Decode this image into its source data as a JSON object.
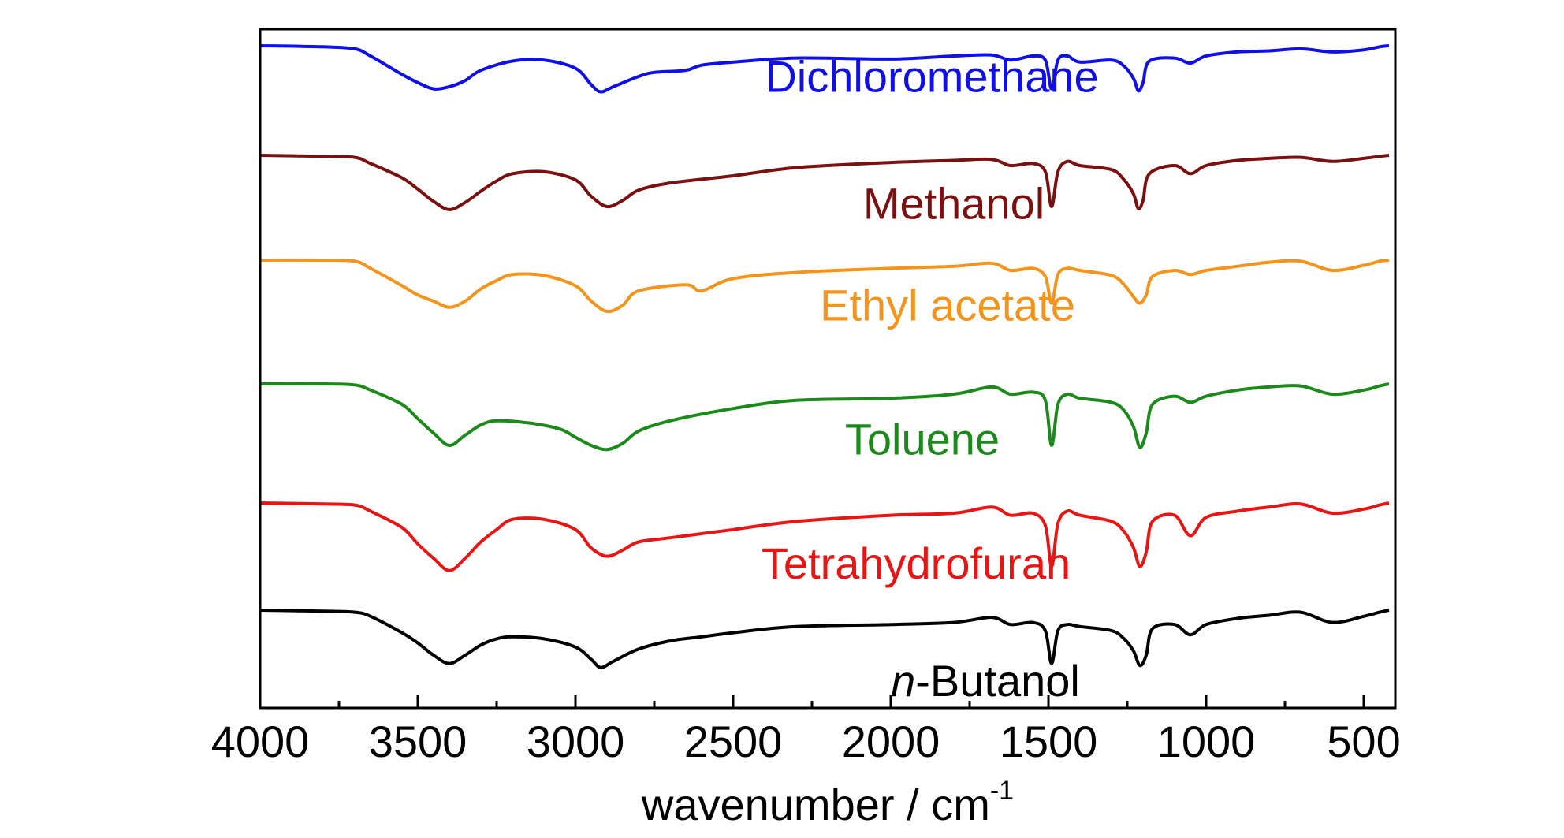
{
  "chart_data": {
    "type": "line",
    "title": "",
    "xlabel": "wavenumber / cm",
    "xlabel_sup": "-1",
    "ylabel": "",
    "xlim": [
      4000,
      400
    ],
    "x_reversed": true,
    "grid": false,
    "legend": "inline labels",
    "x_ticks": [
      4000,
      3500,
      3000,
      2500,
      2000,
      1500,
      1000,
      500
    ],
    "x_tick_labels": [
      "4000",
      "3500",
      "3000",
      "2500",
      "2000",
      "1500",
      "1000",
      "500"
    ],
    "series": [
      {
        "name": "Dichloromethane",
        "color": "#1010e6",
        "baseline": 0.93,
        "label_x": 1870,
        "label_y": 0.69,
        "points": [
          [
            4000,
            1.0
          ],
          [
            3800,
            0.99
          ],
          [
            3700,
            0.97
          ],
          [
            3650,
            0.9
          ],
          [
            3550,
            0.72
          ],
          [
            3500,
            0.64
          ],
          [
            3450,
            0.58
          ],
          [
            3400,
            0.6
          ],
          [
            3350,
            0.66
          ],
          [
            3300,
            0.76
          ],
          [
            3200,
            0.85
          ],
          [
            3100,
            0.86
          ],
          [
            3000,
            0.78
          ],
          [
            2950,
            0.62
          ],
          [
            2920,
            0.55
          ],
          [
            2880,
            0.6
          ],
          [
            2800,
            0.7
          ],
          [
            2750,
            0.74
          ],
          [
            2650,
            0.76
          ],
          [
            2600,
            0.81
          ],
          [
            2500,
            0.84
          ],
          [
            2300,
            0.88
          ],
          [
            2000,
            0.87
          ],
          [
            1800,
            0.9
          ],
          [
            1680,
            0.91
          ],
          [
            1620,
            0.86
          ],
          [
            1550,
            0.9
          ],
          [
            1510,
            0.86
          ],
          [
            1490,
            0.58
          ],
          [
            1470,
            0.86
          ],
          [
            1440,
            0.9
          ],
          [
            1400,
            0.84
          ],
          [
            1300,
            0.86
          ],
          [
            1260,
            0.8
          ],
          [
            1230,
            0.68
          ],
          [
            1215,
            0.56
          ],
          [
            1200,
            0.64
          ],
          [
            1180,
            0.85
          ],
          [
            1100,
            0.88
          ],
          [
            1050,
            0.83
          ],
          [
            1000,
            0.9
          ],
          [
            900,
            0.94
          ],
          [
            800,
            0.95
          ],
          [
            700,
            0.97
          ],
          [
            600,
            0.94
          ],
          [
            500,
            0.96
          ],
          [
            450,
            0.99
          ],
          [
            420,
            1.0
          ]
        ]
      },
      {
        "name": "Methanol",
        "color": "#7a1010",
        "baseline": 0.93,
        "label_x": 1800,
        "label_y": 0.52,
        "points": [
          [
            4000,
            1.0
          ],
          [
            3800,
            0.99
          ],
          [
            3700,
            0.98
          ],
          [
            3650,
            0.92
          ],
          [
            3550,
            0.78
          ],
          [
            3500,
            0.67
          ],
          [
            3450,
            0.55
          ],
          [
            3400,
            0.47
          ],
          [
            3350,
            0.54
          ],
          [
            3300,
            0.65
          ],
          [
            3250,
            0.75
          ],
          [
            3200,
            0.82
          ],
          [
            3100,
            0.84
          ],
          [
            3000,
            0.76
          ],
          [
            2950,
            0.6
          ],
          [
            2900,
            0.5
          ],
          [
            2850,
            0.56
          ],
          [
            2800,
            0.66
          ],
          [
            2700,
            0.73
          ],
          [
            2500,
            0.8
          ],
          [
            2300,
            0.88
          ],
          [
            2000,
            0.93
          ],
          [
            1800,
            0.95
          ],
          [
            1680,
            0.96
          ],
          [
            1620,
            0.9
          ],
          [
            1550,
            0.92
          ],
          [
            1510,
            0.84
          ],
          [
            1490,
            0.5
          ],
          [
            1470,
            0.84
          ],
          [
            1440,
            0.94
          ],
          [
            1400,
            0.9
          ],
          [
            1300,
            0.86
          ],
          [
            1260,
            0.76
          ],
          [
            1230,
            0.62
          ],
          [
            1215,
            0.48
          ],
          [
            1200,
            0.56
          ],
          [
            1180,
            0.82
          ],
          [
            1100,
            0.9
          ],
          [
            1050,
            0.82
          ],
          [
            1000,
            0.9
          ],
          [
            900,
            0.95
          ],
          [
            800,
            0.97
          ],
          [
            700,
            0.98
          ],
          [
            600,
            0.94
          ],
          [
            500,
            0.97
          ],
          [
            450,
            0.99
          ],
          [
            420,
            1.0
          ]
        ]
      },
      {
        "name": "Ethyl acetate",
        "color": "#f4941c",
        "baseline": 0.93,
        "label_x": 1820,
        "label_y": 0.55,
        "points": [
          [
            4000,
            1.0
          ],
          [
            3800,
            1.0
          ],
          [
            3700,
            0.99
          ],
          [
            3650,
            0.92
          ],
          [
            3550,
            0.75
          ],
          [
            3500,
            0.66
          ],
          [
            3450,
            0.6
          ],
          [
            3400,
            0.54
          ],
          [
            3350,
            0.6
          ],
          [
            3300,
            0.72
          ],
          [
            3250,
            0.8
          ],
          [
            3200,
            0.86
          ],
          [
            3100,
            0.85
          ],
          [
            3000,
            0.75
          ],
          [
            2950,
            0.6
          ],
          [
            2900,
            0.5
          ],
          [
            2850,
            0.56
          ],
          [
            2800,
            0.7
          ],
          [
            2650,
            0.76
          ],
          [
            2600,
            0.7
          ],
          [
            2500,
            0.82
          ],
          [
            2300,
            0.88
          ],
          [
            2000,
            0.92
          ],
          [
            1800,
            0.94
          ],
          [
            1680,
            0.97
          ],
          [
            1620,
            0.9
          ],
          [
            1550,
            0.92
          ],
          [
            1510,
            0.84
          ],
          [
            1490,
            0.58
          ],
          [
            1470,
            0.86
          ],
          [
            1440,
            0.92
          ],
          [
            1400,
            0.9
          ],
          [
            1300,
            0.85
          ],
          [
            1260,
            0.76
          ],
          [
            1230,
            0.64
          ],
          [
            1210,
            0.58
          ],
          [
            1190,
            0.66
          ],
          [
            1170,
            0.84
          ],
          [
            1100,
            0.9
          ],
          [
            1050,
            0.86
          ],
          [
            1000,
            0.9
          ],
          [
            900,
            0.94
          ],
          [
            800,
            0.98
          ],
          [
            700,
            0.99
          ],
          [
            600,
            0.9
          ],
          [
            500,
            0.95
          ],
          [
            450,
            0.99
          ],
          [
            420,
            1.0
          ]
        ]
      },
      {
        "name": "Toluene",
        "color": "#1b8a1b",
        "baseline": 0.93,
        "label_x": 1900,
        "label_y": 0.45,
        "points": [
          [
            4000,
            1.0
          ],
          [
            3800,
            1.0
          ],
          [
            3700,
            0.99
          ],
          [
            3650,
            0.94
          ],
          [
            3550,
            0.8
          ],
          [
            3500,
            0.66
          ],
          [
            3450,
            0.52
          ],
          [
            3400,
            0.4
          ],
          [
            3350,
            0.5
          ],
          [
            3300,
            0.6
          ],
          [
            3250,
            0.64
          ],
          [
            3150,
            0.62
          ],
          [
            3050,
            0.56
          ],
          [
            3000,
            0.48
          ],
          [
            2950,
            0.4
          ],
          [
            2900,
            0.36
          ],
          [
            2850,
            0.42
          ],
          [
            2800,
            0.54
          ],
          [
            2700,
            0.64
          ],
          [
            2500,
            0.76
          ],
          [
            2300,
            0.84
          ],
          [
            2000,
            0.86
          ],
          [
            1800,
            0.9
          ],
          [
            1680,
            0.97
          ],
          [
            1620,
            0.9
          ],
          [
            1550,
            0.92
          ],
          [
            1510,
            0.84
          ],
          [
            1490,
            0.4
          ],
          [
            1470,
            0.8
          ],
          [
            1440,
            0.9
          ],
          [
            1400,
            0.86
          ],
          [
            1300,
            0.82
          ],
          [
            1260,
            0.74
          ],
          [
            1230,
            0.58
          ],
          [
            1210,
            0.38
          ],
          [
            1190,
            0.52
          ],
          [
            1170,
            0.8
          ],
          [
            1100,
            0.88
          ],
          [
            1050,
            0.82
          ],
          [
            1000,
            0.88
          ],
          [
            900,
            0.94
          ],
          [
            800,
            0.97
          ],
          [
            700,
            0.98
          ],
          [
            600,
            0.9
          ],
          [
            500,
            0.94
          ],
          [
            450,
            0.98
          ],
          [
            420,
            1.0
          ]
        ]
      },
      {
        "name": "Tetrahydrofuran",
        "color": "#e81515",
        "baseline": 0.93,
        "label_x": 1920,
        "label_y": 0.4,
        "points": [
          [
            4000,
            1.0
          ],
          [
            3800,
            0.99
          ],
          [
            3700,
            0.98
          ],
          [
            3650,
            0.92
          ],
          [
            3550,
            0.76
          ],
          [
            3500,
            0.6
          ],
          [
            3450,
            0.46
          ],
          [
            3400,
            0.34
          ],
          [
            3350,
            0.46
          ],
          [
            3300,
            0.62
          ],
          [
            3250,
            0.74
          ],
          [
            3200,
            0.84
          ],
          [
            3100,
            0.84
          ],
          [
            3000,
            0.74
          ],
          [
            2950,
            0.56
          ],
          [
            2900,
            0.48
          ],
          [
            2850,
            0.54
          ],
          [
            2800,
            0.62
          ],
          [
            2700,
            0.66
          ],
          [
            2550,
            0.72
          ],
          [
            2500,
            0.74
          ],
          [
            2300,
            0.82
          ],
          [
            2000,
            0.88
          ],
          [
            1800,
            0.9
          ],
          [
            1680,
            0.96
          ],
          [
            1620,
            0.88
          ],
          [
            1550,
            0.9
          ],
          [
            1510,
            0.78
          ],
          [
            1490,
            0.38
          ],
          [
            1470,
            0.8
          ],
          [
            1440,
            0.92
          ],
          [
            1400,
            0.88
          ],
          [
            1300,
            0.82
          ],
          [
            1260,
            0.72
          ],
          [
            1230,
            0.56
          ],
          [
            1210,
            0.38
          ],
          [
            1190,
            0.52
          ],
          [
            1170,
            0.82
          ],
          [
            1100,
            0.88
          ],
          [
            1050,
            0.68
          ],
          [
            1000,
            0.86
          ],
          [
            900,
            0.92
          ],
          [
            800,
            0.96
          ],
          [
            700,
            0.99
          ],
          [
            600,
            0.9
          ],
          [
            500,
            0.94
          ],
          [
            450,
            0.98
          ],
          [
            420,
            1.0
          ]
        ]
      },
      {
        "name": "n-Butanol",
        "name_italic_prefix": "n",
        "name_rest": "-Butanol",
        "color": "#000000",
        "baseline": 0.93,
        "label_x": 1700,
        "label_y": 0.3,
        "points": [
          [
            4000,
            1.0
          ],
          [
            3800,
            0.99
          ],
          [
            3700,
            0.98
          ],
          [
            3650,
            0.94
          ],
          [
            3550,
            0.78
          ],
          [
            3500,
            0.68
          ],
          [
            3450,
            0.56
          ],
          [
            3400,
            0.48
          ],
          [
            3350,
            0.56
          ],
          [
            3300,
            0.66
          ],
          [
            3250,
            0.72
          ],
          [
            3200,
            0.74
          ],
          [
            3100,
            0.72
          ],
          [
            3000,
            0.64
          ],
          [
            2950,
            0.52
          ],
          [
            2920,
            0.44
          ],
          [
            2880,
            0.5
          ],
          [
            2800,
            0.62
          ],
          [
            2700,
            0.7
          ],
          [
            2600,
            0.74
          ],
          [
            2500,
            0.78
          ],
          [
            2300,
            0.84
          ],
          [
            2000,
            0.86
          ],
          [
            1800,
            0.88
          ],
          [
            1680,
            0.93
          ],
          [
            1620,
            0.86
          ],
          [
            1550,
            0.88
          ],
          [
            1510,
            0.8
          ],
          [
            1490,
            0.48
          ],
          [
            1470,
            0.8
          ],
          [
            1440,
            0.86
          ],
          [
            1400,
            0.84
          ],
          [
            1300,
            0.8
          ],
          [
            1260,
            0.72
          ],
          [
            1230,
            0.6
          ],
          [
            1210,
            0.46
          ],
          [
            1190,
            0.56
          ],
          [
            1170,
            0.82
          ],
          [
            1100,
            0.86
          ],
          [
            1050,
            0.76
          ],
          [
            1000,
            0.86
          ],
          [
            900,
            0.92
          ],
          [
            800,
            0.95
          ],
          [
            700,
            0.98
          ],
          [
            600,
            0.88
          ],
          [
            500,
            0.94
          ],
          [
            450,
            0.98
          ],
          [
            420,
            1.0
          ]
        ]
      }
    ]
  }
}
